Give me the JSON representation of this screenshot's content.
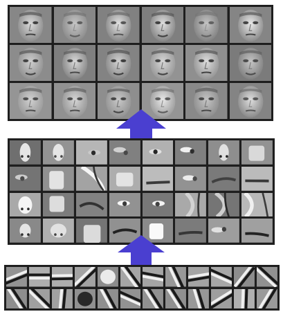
{
  "diagram": {
    "description_colors": {
      "arrow": "#4a3fd0",
      "frame": "#1e1e1e"
    },
    "layers": [
      {
        "id": "faces",
        "rows": 3,
        "cols": 6,
        "kind": "face-parts-composed"
      },
      {
        "id": "parts",
        "rows": 4,
        "cols": 8,
        "kind": "object-parts"
      },
      {
        "id": "edges",
        "rows": 2,
        "cols": 12,
        "kind": "edge-filters"
      }
    ],
    "arrows": [
      {
        "from": "parts",
        "to": "faces",
        "icon": "arrow-up-icon"
      },
      {
        "from": "edges",
        "to": "parts",
        "icon": "arrow-up-icon"
      }
    ],
    "corner_label": ""
  }
}
